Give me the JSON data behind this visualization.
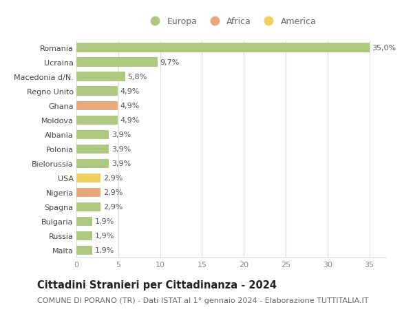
{
  "categories": [
    "Romania",
    "Ucraina",
    "Macedonia d/N.",
    "Regno Unito",
    "Ghana",
    "Moldova",
    "Albania",
    "Polonia",
    "Bielorussia",
    "USA",
    "Nigeria",
    "Spagna",
    "Bulgaria",
    "Russia",
    "Malta"
  ],
  "values": [
    35.0,
    9.7,
    5.8,
    4.9,
    4.9,
    4.9,
    3.9,
    3.9,
    3.9,
    2.9,
    2.9,
    2.9,
    1.9,
    1.9,
    1.9
  ],
  "labels": [
    "35,0%",
    "9,7%",
    "5,8%",
    "4,9%",
    "4,9%",
    "4,9%",
    "3,9%",
    "3,9%",
    "3,9%",
    "2,9%",
    "2,9%",
    "2,9%",
    "1,9%",
    "1,9%",
    "1,9%"
  ],
  "continents": [
    "Europa",
    "Europa",
    "Europa",
    "Europa",
    "Africa",
    "Europa",
    "Europa",
    "Europa",
    "Europa",
    "America",
    "Africa",
    "Europa",
    "Europa",
    "Europa",
    "Europa"
  ],
  "colors": {
    "Europa": "#adc97f",
    "Africa": "#e8a87c",
    "America": "#f2d060"
  },
  "title": "Cittadini Stranieri per Cittadinanza - 2024",
  "subtitle": "COMUNE DI PORANO (TR) - Dati ISTAT al 1° gennaio 2024 - Elaborazione TUTTITALIA.IT",
  "xlim": [
    0,
    37
  ],
  "xticks": [
    0,
    5,
    10,
    15,
    20,
    25,
    30,
    35
  ],
  "background_color": "#ffffff",
  "grid_color": "#dddddd",
  "bar_height": 0.65,
  "label_fontsize": 8,
  "tick_fontsize": 8,
  "title_fontsize": 10.5,
  "subtitle_fontsize": 8
}
